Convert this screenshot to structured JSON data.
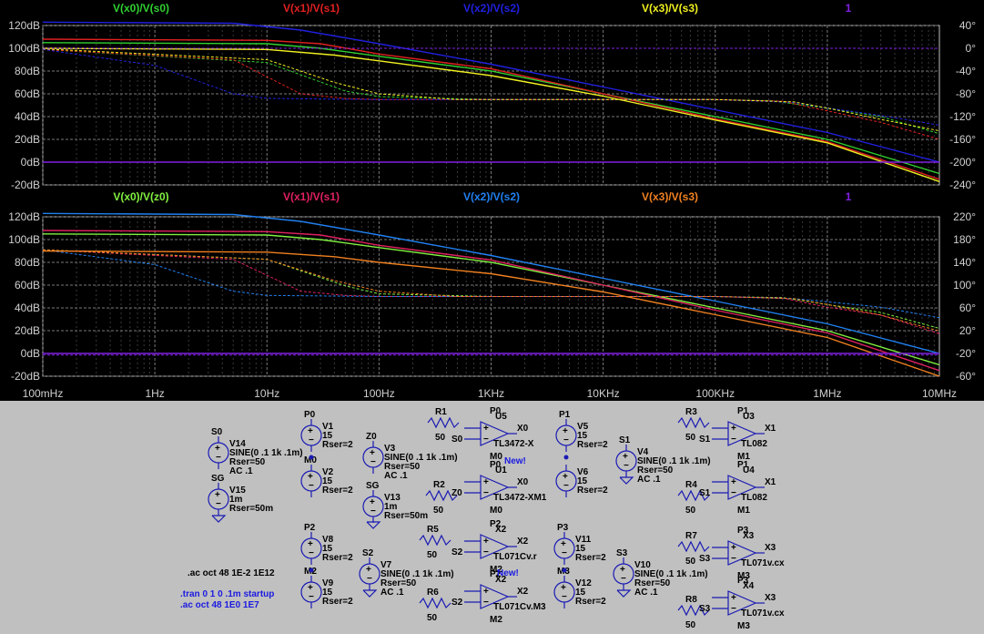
{
  "chart_data": [
    {
      "type": "line",
      "x_scale": "log",
      "xlim": [
        0.1,
        10000000
      ],
      "x_ticks": [
        "100mHz",
        "1Hz",
        "10Hz",
        "100Hz",
        "1KHz",
        "10KHz",
        "100KHz",
        "1MHz",
        "10MHz"
      ],
      "ylim": [
        -20,
        120
      ],
      "y_ticks": [
        "120dB",
        "100dB",
        "80dB",
        "60dB",
        "40dB",
        "20dB",
        "0dB",
        "-20dB"
      ],
      "y2lim": [
        -240,
        40
      ],
      "y2_ticks": [
        "40°",
        "0°",
        "-40°",
        "-80°",
        "-120°",
        "-160°",
        "-200°",
        "-240°"
      ],
      "grid": true,
      "legend": [
        {
          "text": "V(x0)/V(s0)",
          "color": "#30d030"
        },
        {
          "text": "V(x1)/V(s1)",
          "color": "#e02020"
        },
        {
          "text": "V(x2)/V(s2)",
          "color": "#2020e0"
        },
        {
          "text": "V(x3)/V(s3)",
          "color": "#f0f020"
        },
        {
          "text": "1",
          "color": "#8020e0"
        }
      ],
      "series": [
        {
          "name": "V(x0)/V(s0)",
          "color": "#30d030",
          "mag": [
            [
              0.1,
              105
            ],
            [
              10,
              104
            ],
            [
              30,
              100
            ],
            [
              100,
              93
            ],
            [
              1000,
              80
            ],
            [
              10000,
              60
            ],
            [
              100000,
              40
            ],
            [
              1000000,
              20
            ],
            [
              10000000,
              -10
            ]
          ],
          "phase": [
            [
              0.1,
              -2
            ],
            [
              10,
              -25
            ],
            [
              50,
              -75
            ],
            [
              100,
              -85
            ],
            [
              1000,
              -90
            ],
            [
              10000,
              -90
            ],
            [
              100000,
              -90
            ],
            [
              300000,
              -92
            ],
            [
              1000000,
              -105
            ],
            [
              3000000,
              -120
            ],
            [
              10000000,
              -150
            ]
          ]
        },
        {
          "name": "V(x1)/V(s1)",
          "color": "#e02020",
          "mag": [
            [
              0.1,
              108
            ],
            [
              10,
              107
            ],
            [
              30,
              104
            ],
            [
              100,
              95
            ],
            [
              1000,
              82
            ],
            [
              10000,
              60
            ],
            [
              100000,
              38
            ],
            [
              1000000,
              18
            ],
            [
              10000000,
              -15
            ]
          ],
          "phase": [
            [
              0.1,
              -2
            ],
            [
              5,
              -20
            ],
            [
              20,
              -80
            ],
            [
              50,
              -88
            ],
            [
              100,
              -90
            ],
            [
              100000,
              -90
            ],
            [
              400000,
              -93
            ],
            [
              1000000,
              -110
            ],
            [
              3000000,
              -130
            ],
            [
              10000000,
              -160
            ]
          ]
        },
        {
          "name": "V(x2)/V(s2)",
          "color": "#2020e0",
          "mag": [
            [
              0.1,
              123
            ],
            [
              5,
              122
            ],
            [
              20,
              116
            ],
            [
              100,
              104
            ],
            [
              1000,
              86
            ],
            [
              10000,
              66
            ],
            [
              100000,
              46
            ],
            [
              1000000,
              26
            ],
            [
              10000000,
              0
            ]
          ],
          "phase": [
            [
              0.1,
              -2
            ],
            [
              1,
              -30
            ],
            [
              5,
              -80
            ],
            [
              10,
              -88
            ],
            [
              100,
              -90
            ],
            [
              100000,
              -90
            ],
            [
              500000,
              -95
            ],
            [
              1000000,
              -105
            ],
            [
              3000000,
              -118
            ],
            [
              10000000,
              -135
            ]
          ]
        },
        {
          "name": "V(x3)/V(s3)",
          "color": "#f0f020",
          "mag": [
            [
              0.1,
              100
            ],
            [
              10,
              99
            ],
            [
              40,
              94
            ],
            [
              100,
              89
            ],
            [
              1000,
              76
            ],
            [
              10000,
              58
            ],
            [
              100000,
              37
            ],
            [
              1000000,
              17
            ],
            [
              10000000,
              -17
            ]
          ],
          "phase": [
            [
              0.1,
              -1
            ],
            [
              10,
              -20
            ],
            [
              40,
              -60
            ],
            [
              100,
              -80
            ],
            [
              500,
              -90
            ],
            [
              100000,
              -90
            ],
            [
              500000,
              -94
            ],
            [
              1000000,
              -105
            ],
            [
              3000000,
              -125
            ],
            [
              10000000,
              -145
            ]
          ]
        },
        {
          "name": "1",
          "color": "#8020e0",
          "mag": [
            [
              0.1,
              0
            ],
            [
              10000000,
              0
            ]
          ],
          "phase": [
            [
              0.1,
              0
            ],
            [
              10000000,
              0
            ]
          ]
        }
      ]
    },
    {
      "type": "line",
      "x_scale": "log",
      "xlim": [
        0.1,
        10000000
      ],
      "x_ticks": [
        "100mHz",
        "1Hz",
        "10Hz",
        "100Hz",
        "1KHz",
        "10KHz",
        "100KHz",
        "1MHz",
        "10MHz"
      ],
      "ylim": [
        -20,
        120
      ],
      "y_ticks": [
        "120dB",
        "100dB",
        "80dB",
        "60dB",
        "40dB",
        "20dB",
        "0dB",
        "-20dB"
      ],
      "y2lim": [
        -60,
        240
      ],
      "y2_ticks": [
        "220°",
        "180°",
        "140°",
        "100°",
        "60°",
        "20°",
        "-20°",
        "-60°"
      ],
      "grid": true,
      "legend": [
        {
          "text": "V(x0)/V(z0)",
          "color": "#80f040"
        },
        {
          "text": "V(x1)/V(s1)",
          "color": "#e02060"
        },
        {
          "text": "V(x2)/V(s2)",
          "color": "#2080f0"
        },
        {
          "text": "V(x3)/V(s3)",
          "color": "#f08020"
        },
        {
          "text": "1",
          "color": "#8020e0"
        }
      ],
      "series": [
        {
          "name": "V(x0)/V(z0)",
          "color": "#80f040",
          "mag": [
            [
              0.1,
              105
            ],
            [
              10,
              104
            ],
            [
              30,
              100
            ],
            [
              100,
              93
            ],
            [
              1000,
              80
            ],
            [
              10000,
              60
            ],
            [
              100000,
              40
            ],
            [
              1000000,
              20
            ],
            [
              10000000,
              -10
            ]
          ],
          "phase": [
            [
              0.1,
              178
            ],
            [
              10,
              160
            ],
            [
              50,
              110
            ],
            [
              100,
              95
            ],
            [
              1000,
              90
            ],
            [
              100000,
              90
            ],
            [
              400000,
              88
            ],
            [
              1000000,
              75
            ],
            [
              3000000,
              60
            ],
            [
              10000000,
              30
            ]
          ]
        },
        {
          "name": "V(x1)/V(s1)",
          "color": "#e02060",
          "mag": [
            [
              0.1,
              108
            ],
            [
              10,
              107
            ],
            [
              30,
              104
            ],
            [
              100,
              95
            ],
            [
              1000,
              82
            ],
            [
              10000,
              60
            ],
            [
              100000,
              38
            ],
            [
              1000000,
              18
            ],
            [
              10000000,
              -15
            ]
          ],
          "phase": [
            [
              0.1,
              178
            ],
            [
              5,
              160
            ],
            [
              20,
              100
            ],
            [
              50,
              92
            ],
            [
              100,
              90
            ],
            [
              100000,
              90
            ],
            [
              400000,
              87
            ],
            [
              1000000,
              70
            ],
            [
              3000000,
              55
            ],
            [
              10000000,
              20
            ]
          ]
        },
        {
          "name": "V(x2)/V(s2)",
          "color": "#2080f0",
          "mag": [
            [
              0.1,
              123
            ],
            [
              5,
              122
            ],
            [
              20,
              116
            ],
            [
              100,
              104
            ],
            [
              1000,
              86
            ],
            [
              10000,
              66
            ],
            [
              100000,
              46
            ],
            [
              1000000,
              26
            ],
            [
              10000000,
              0
            ]
          ],
          "phase": [
            [
              0.1,
              178
            ],
            [
              1,
              150
            ],
            [
              5,
              100
            ],
            [
              10,
              92
            ],
            [
              100,
              90
            ],
            [
              100000,
              90
            ],
            [
              500000,
              86
            ],
            [
              1000000,
              80
            ],
            [
              3000000,
              70
            ],
            [
              10000000,
              50
            ]
          ]
        },
        {
          "name": "V(x3)/V(s3)",
          "color": "#f08020",
          "mag": [
            [
              0.1,
              90
            ],
            [
              10,
              89
            ],
            [
              40,
              85
            ],
            [
              100,
              80
            ],
            [
              1000,
              70
            ],
            [
              10000,
              54
            ],
            [
              100000,
              34
            ],
            [
              1000000,
              14
            ],
            [
              10000000,
              -20
            ]
          ],
          "phase": [
            [
              0.1,
              178
            ],
            [
              10,
              160
            ],
            [
              40,
              120
            ],
            [
              100,
              100
            ],
            [
              500,
              90
            ],
            [
              100000,
              90
            ],
            [
              500000,
              86
            ],
            [
              1000000,
              75
            ],
            [
              3000000,
              55
            ],
            [
              10000000,
              25
            ]
          ]
        },
        {
          "name": "1",
          "color": "#8020e0",
          "mag": [
            [
              0.1,
              0
            ],
            [
              10000000,
              0
            ]
          ],
          "phase": [
            [
              0.1,
              -20
            ],
            [
              10000000,
              -20
            ]
          ]
        }
      ]
    }
  ],
  "schematic": {
    "sources": [
      {
        "ref": "V14",
        "lines": [
          "SINE(0 .1 1k .1m)",
          "Rser=50",
          "AC .1"
        ],
        "net": "S0"
      },
      {
        "ref": "V15",
        "lines": [
          "1m",
          "Rser=50m"
        ],
        "net": "SG"
      },
      {
        "ref": "V1",
        "lines": [
          "15",
          "Rser=2"
        ],
        "net": "P0"
      },
      {
        "ref": "V2",
        "lines": [
          "15",
          "Rser=2"
        ],
        "net": "M0"
      },
      {
        "ref": "V3",
        "lines": [
          "SINE(0 .1 1k .1m)",
          "Rser=50",
          "AC .1"
        ],
        "net": "Z0"
      },
      {
        "ref": "V13",
        "lines": [
          "1m",
          "Rser=50m"
        ],
        "net": "SG"
      },
      {
        "ref": "V5",
        "lines": [
          "15",
          "Rser=2"
        ],
        "net": "P1"
      },
      {
        "ref": "V6",
        "lines": [
          "15",
          "Rser=2"
        ],
        "net": ""
      },
      {
        "ref": "V4",
        "lines": [
          "SINE(0 .1 1k .1m)",
          "Rser=50",
          "AC .1"
        ],
        "net": "S1"
      },
      {
        "ref": "V8",
        "lines": [
          "15",
          "Rser=2"
        ],
        "net": "P2"
      },
      {
        "ref": "V9",
        "lines": [
          "15",
          "Rser=2"
        ],
        "net": "M2"
      },
      {
        "ref": "V7",
        "lines": [
          "SINE(0 .1 1k .1m)",
          "Rser=50",
          "AC .1"
        ],
        "net": "S2"
      },
      {
        "ref": "V11",
        "lines": [
          "15",
          "Rser=2"
        ],
        "net": "P3"
      },
      {
        "ref": "V12",
        "lines": [
          "15",
          "Rser=2"
        ],
        "net": "M3"
      },
      {
        "ref": "V10",
        "lines": [
          "SINE(0 .1 1k .1m)",
          "Rser=50",
          "AC .1"
        ],
        "net": "S3"
      }
    ],
    "resistors": [
      {
        "ref": "R1",
        "value": "50"
      },
      {
        "ref": "R2",
        "value": "50"
      },
      {
        "ref": "R3",
        "value": "50"
      },
      {
        "ref": "R4",
        "value": "50"
      },
      {
        "ref": "R5",
        "value": "50"
      },
      {
        "ref": "R6",
        "value": "50"
      },
      {
        "ref": "R7",
        "value": "50"
      },
      {
        "ref": "R8",
        "value": "50"
      }
    ],
    "opamps": [
      {
        "ref": "U5",
        "model": "TL3472-X",
        "out": "X0",
        "in": "S0",
        "p": "P0",
        "m": "M0"
      },
      {
        "ref": "U1",
        "model": "TL3472-XM1",
        "out": "X0",
        "in": "Z0",
        "p": "P0",
        "m": "M0"
      },
      {
        "ref": "U3",
        "model": "TL082",
        "out": "X1",
        "in": "S1",
        "p": "P1",
        "m": "M1"
      },
      {
        "ref": "U4",
        "model": "TL082",
        "out": "X1",
        "in": "S1",
        "p": "P1",
        "m": "M1"
      },
      {
        "ref": "X2",
        "model": "TL071Cv.r",
        "out": "X2",
        "in": "S2",
        "p": "P2",
        "m": "M2"
      },
      {
        "ref": "X2",
        "model": "TL071Cv.M3",
        "out": "X2",
        "in": "S2",
        "p": "P2",
        "m": "M2"
      },
      {
        "ref": "X3",
        "model": "TL071v.cx",
        "out": "X3",
        "in": "S3",
        "p": "P3",
        "m": "M3"
      },
      {
        "ref": "X4",
        "model": "TL071v.cx",
        "out": "X3",
        "in": "S3",
        "p": "P3",
        "m": "M3"
      }
    ],
    "new_labels": [
      "New!",
      "New!"
    ],
    "directive_black": ".ac oct 48 1E-2 1E12",
    "directive_blue_1": ".tran 0 1 0 .1m startup",
    "directive_blue_2": ".ac oct 48 1E0 1E7"
  }
}
